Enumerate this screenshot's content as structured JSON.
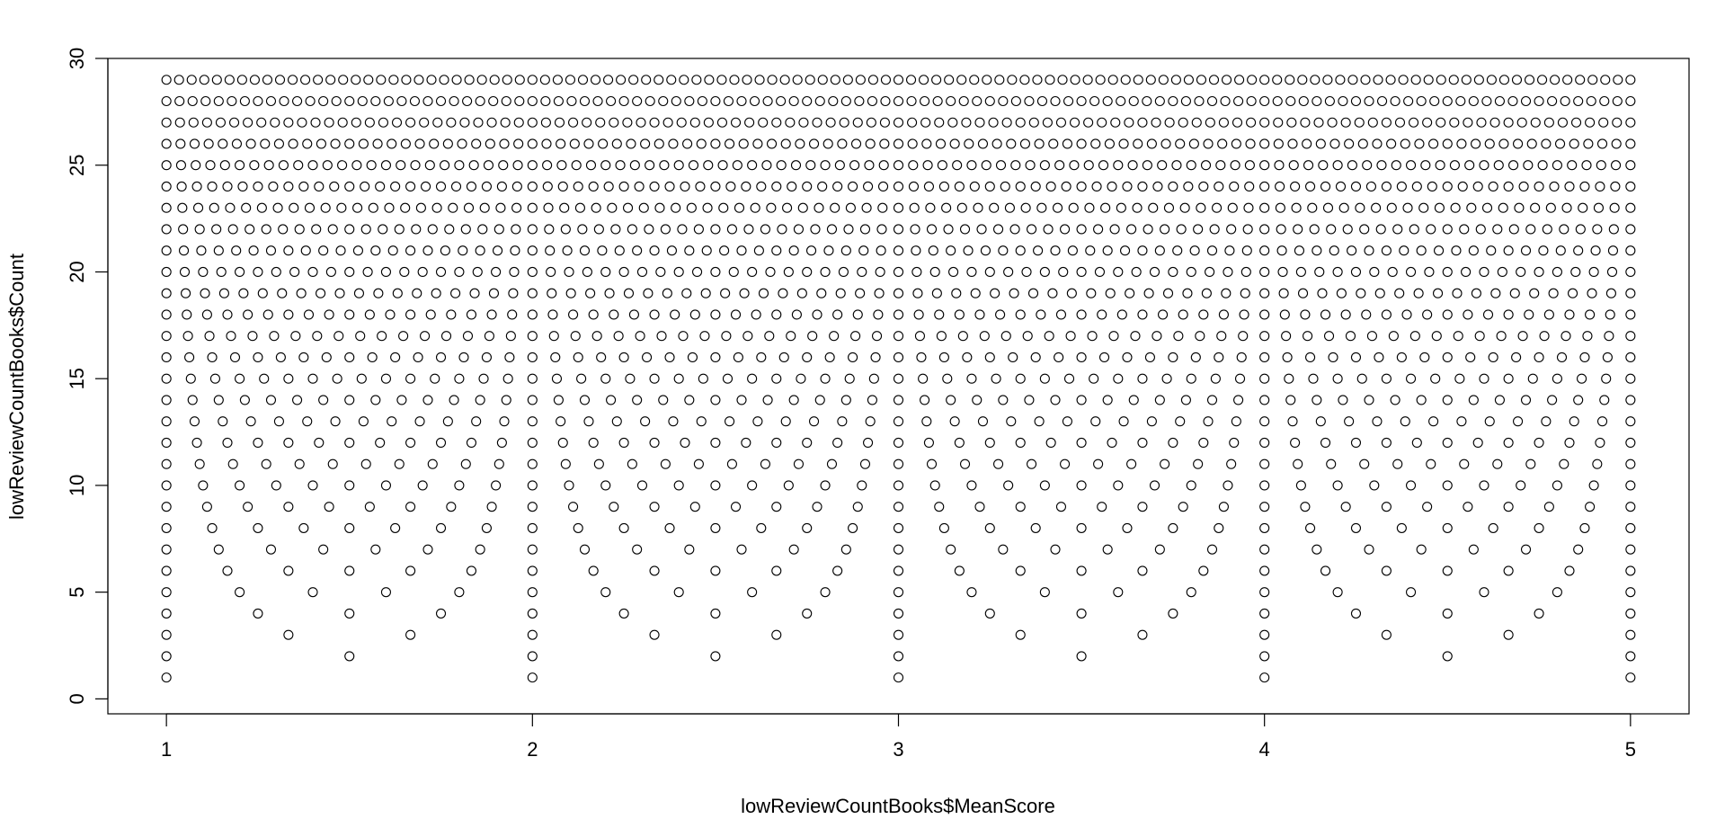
{
  "chart_data": {
    "type": "scatter",
    "title": "",
    "xlabel": "lowReviewCountBooks$MeanScore",
    "ylabel": "lowReviewCountBooks$Count",
    "xlim": [
      0.84,
      5.16
    ],
    "ylim": [
      -0.7,
      30.0
    ],
    "xticks": [
      1,
      2,
      3,
      4,
      5
    ],
    "yticks": [
      0,
      5,
      10,
      15,
      20,
      25,
      30
    ],
    "marker": "open-circle",
    "grid": false,
    "legend": "none",
    "point_rule": "one point for every rating-count n from 1 to 29 and every total k from n to 5n, at x = k / n, y = n",
    "count_range": [
      1,
      29
    ],
    "score_range": [
      1,
      5
    ]
  }
}
